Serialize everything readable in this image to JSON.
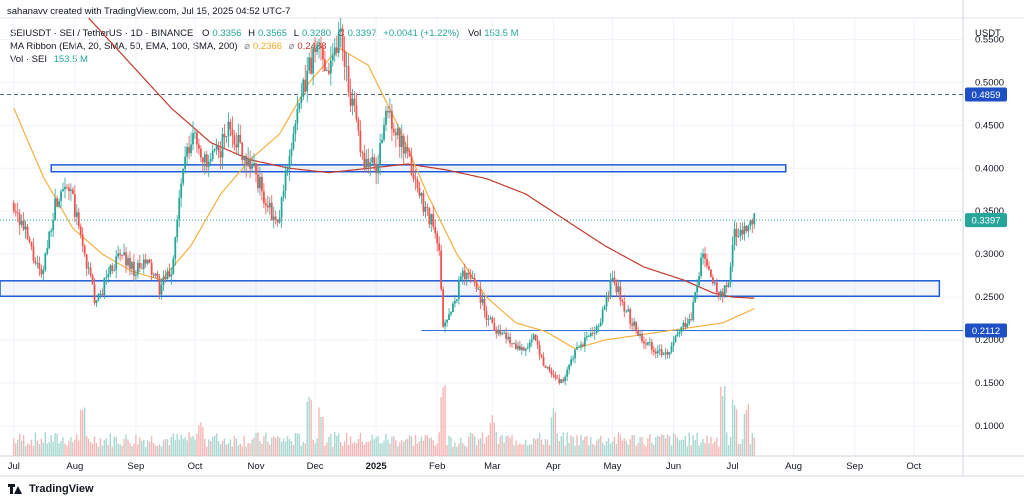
{
  "caption": "sahanavv created with TradingView.com, Jul 15, 2025 04:52 UTC-7",
  "legend": {
    "symbol": "SEIUSDT · SEI / TetherUS · 1D · BINANCE",
    "o_label": "O",
    "o": "0.3356",
    "h_label": "H",
    "h": "0.3565",
    "l_label": "L",
    "l": "0.3280",
    "c_label": "C",
    "c": "0.3397",
    "change": "+0.0041 (+1.22%)",
    "vol_label": "Vol",
    "vol": "153.5 M",
    "ma_label": "MA Ribbon (EMA, 20, SMA, 50, EMA, 100, SMA, 200)",
    "ma1": "0.2366",
    "ma2": "0.2488",
    "vol2_label": "Vol · SEI",
    "vol2": "153.5 M"
  },
  "footer": {
    "brand": "TradingView"
  },
  "colors": {
    "up": "#26a69a",
    "down": "#ef5350",
    "ma_fast": "#f5b041",
    "ma_slow": "#c0392b",
    "zone": "#1e5bd8",
    "label_bg": "#1e4fc4",
    "price_label": "#26a69a"
  },
  "chart_data": {
    "type": "candlestick",
    "currency_label": "USDT",
    "y_ticks": [
      "0.5500",
      "0.5000",
      "0.4500",
      "0.4000",
      "0.3500",
      "0.3000",
      "0.2500",
      "0.2000",
      "0.1500",
      "0.1000"
    ],
    "y_tick_values": [
      0.55,
      0.5,
      0.45,
      0.4,
      0.35,
      0.3,
      0.25,
      0.2,
      0.15,
      0.1
    ],
    "ylim": [
      0.065,
      0.575
    ],
    "x_ticks": [
      "Jul",
      "Aug",
      "Sep",
      "Oct",
      "Nov",
      "Dec",
      "2025",
      "Feb",
      "Mar",
      "Apr",
      "May",
      "Jun",
      "Jul",
      "Aug",
      "Sep",
      "Oct"
    ],
    "x_tick_bold": [
      false,
      false,
      false,
      false,
      false,
      false,
      true,
      false,
      false,
      false,
      false,
      false,
      false,
      false,
      false,
      false
    ],
    "x_tick_days": [
      0,
      31,
      62,
      92,
      123,
      153,
      184,
      215,
      243,
      274,
      304,
      335,
      365,
      396,
      427,
      457
    ],
    "x_range_days": [
      -7,
      482
    ],
    "close_path_days": [
      0,
      8,
      14,
      20,
      26,
      30,
      36,
      42,
      48,
      55,
      62,
      68,
      74,
      80,
      86,
      92,
      98,
      104,
      110,
      116,
      122,
      128,
      134,
      140,
      146,
      150,
      155,
      160,
      166,
      172,
      178,
      184,
      190,
      196,
      202,
      206,
      212,
      216,
      218,
      222,
      228,
      234,
      240,
      246,
      252,
      258,
      264,
      270,
      274,
      278,
      284,
      290,
      296,
      300,
      304,
      308,
      314,
      320,
      326,
      332,
      338,
      344,
      350,
      356,
      360,
      364,
      366,
      368,
      372,
      376
    ],
    "close_path_values": [
      0.36,
      0.31,
      0.27,
      0.35,
      0.39,
      0.36,
      0.3,
      0.24,
      0.28,
      0.3,
      0.28,
      0.29,
      0.26,
      0.28,
      0.4,
      0.44,
      0.4,
      0.42,
      0.45,
      0.42,
      0.4,
      0.36,
      0.33,
      0.42,
      0.48,
      0.52,
      0.54,
      0.52,
      0.56,
      0.47,
      0.41,
      0.4,
      0.47,
      0.43,
      0.4,
      0.37,
      0.34,
      0.3,
      0.22,
      0.23,
      0.28,
      0.27,
      0.23,
      0.21,
      0.2,
      0.19,
      0.2,
      0.17,
      0.16,
      0.15,
      0.18,
      0.2,
      0.21,
      0.24,
      0.27,
      0.25,
      0.22,
      0.2,
      0.19,
      0.18,
      0.21,
      0.23,
      0.3,
      0.26,
      0.25,
      0.28,
      0.33,
      0.32,
      0.33,
      0.34
    ],
    "ma_fast_days": [
      0,
      15,
      30,
      45,
      60,
      75,
      90,
      105,
      120,
      135,
      150,
      165,
      180,
      195,
      210,
      225,
      240,
      255,
      270,
      285,
      300,
      315,
      330,
      345,
      360,
      376
    ],
    "ma_fast_values": [
      0.47,
      0.39,
      0.33,
      0.3,
      0.28,
      0.27,
      0.31,
      0.37,
      0.41,
      0.44,
      0.5,
      0.54,
      0.52,
      0.45,
      0.37,
      0.3,
      0.25,
      0.22,
      0.21,
      0.19,
      0.2,
      0.205,
      0.21,
      0.215,
      0.22,
      0.2366
    ],
    "ma_slow_days": [
      0,
      20,
      40,
      60,
      80,
      100,
      120,
      140,
      160,
      180,
      200,
      220,
      240,
      260,
      280,
      300,
      320,
      340,
      355,
      365,
      376
    ],
    "ma_slow_values": [
      0.67,
      0.62,
      0.57,
      0.52,
      0.47,
      0.43,
      0.41,
      0.4,
      0.395,
      0.4,
      0.405,
      0.398,
      0.388,
      0.37,
      0.34,
      0.31,
      0.285,
      0.27,
      0.255,
      0.25,
      0.2488
    ],
    "zones": [
      {
        "x_start_day": 19,
        "x_end_day": 392,
        "low": 0.396,
        "high": 0.404
      },
      {
        "x_start_day": -7,
        "x_end_day": 470,
        "low": 0.251,
        "high": 0.269
      }
    ],
    "horizontal_lines": [
      {
        "value": 0.4859,
        "label": "0.4859",
        "style": "dashed",
        "x_start_day": -7
      },
      {
        "value": 0.2112,
        "label": "0.2112",
        "style": "solid",
        "x_start_day": 207
      }
    ],
    "last_price": {
      "value": 0.3397,
      "label": "0.3397",
      "day": 376
    },
    "volume_spikes": [
      {
        "day": 35,
        "value": 0.06
      },
      {
        "day": 95,
        "value": 0.045
      },
      {
        "day": 150,
        "value": 0.08
      },
      {
        "day": 156,
        "value": 0.065
      },
      {
        "day": 218,
        "value": 0.09
      },
      {
        "day": 243,
        "value": 0.05
      },
      {
        "day": 274,
        "value": 0.06
      },
      {
        "day": 360,
        "value": 0.085
      },
      {
        "day": 366,
        "value": 0.075
      },
      {
        "day": 372,
        "value": 0.07
      }
    ]
  }
}
